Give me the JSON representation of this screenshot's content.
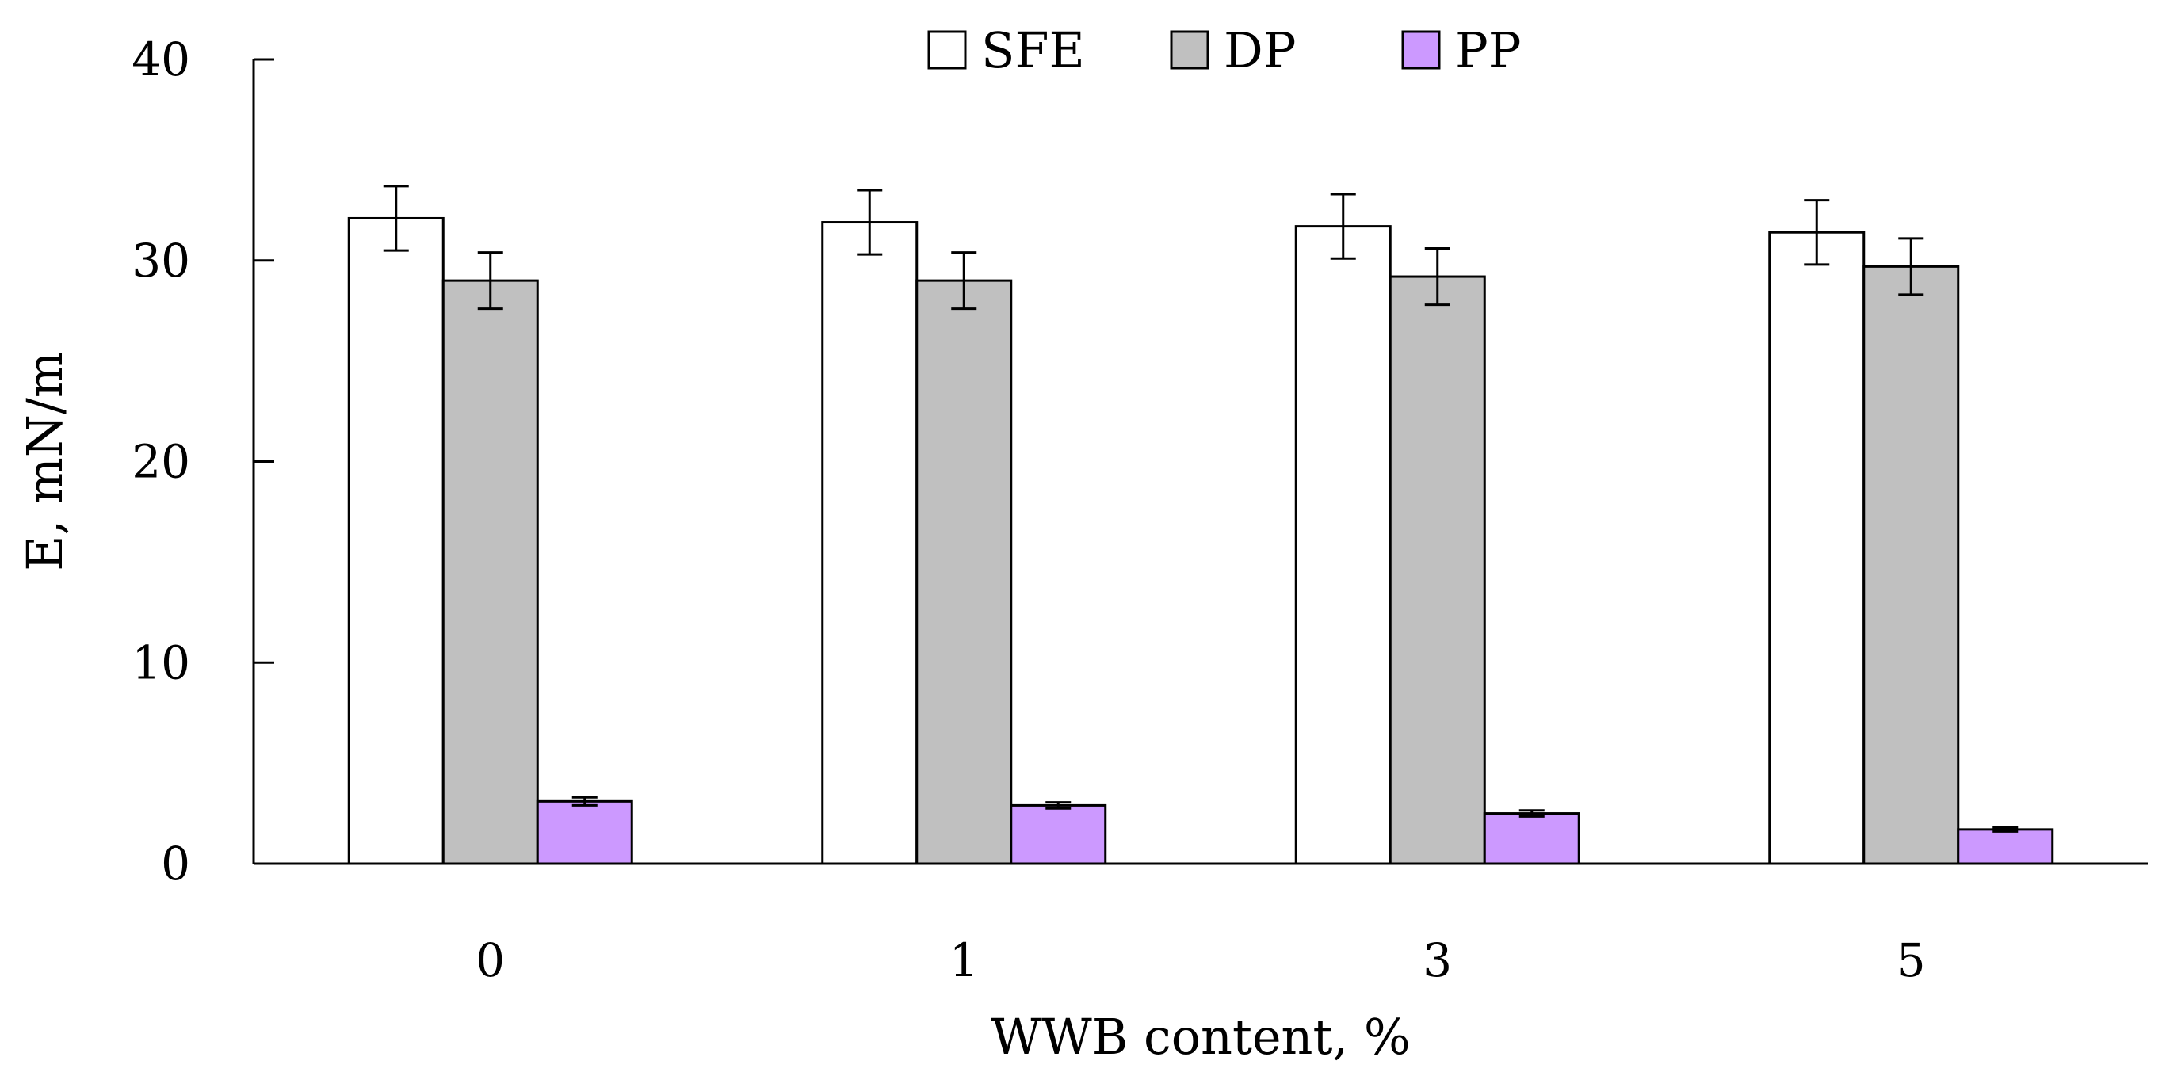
{
  "chart_data": {
    "type": "bar",
    "xlabel": "WWB content, %",
    "ylabel": "E, mN/m",
    "ylim": [
      0,
      40
    ],
    "yticks": [
      "0",
      "10",
      "20",
      "30",
      "40"
    ],
    "categories": [
      "0",
      "1",
      "3",
      "5"
    ],
    "series": [
      {
        "name": "SFE",
        "color": "#ffffff",
        "values": [
          32.1,
          31.9,
          31.7,
          31.4
        ],
        "errors": [
          1.6,
          1.6,
          1.6,
          1.6
        ]
      },
      {
        "name": "DP",
        "color": "#c0c0c0",
        "values": [
          29.0,
          29.0,
          29.2,
          29.7
        ],
        "errors": [
          1.4,
          1.4,
          1.4,
          1.4
        ]
      },
      {
        "name": "PP",
        "color": "#cc99ff",
        "values": [
          3.1,
          2.9,
          2.5,
          1.7
        ],
        "errors": [
          0.2,
          0.15,
          0.15,
          0.1
        ]
      }
    ],
    "legend_position": "top-center",
    "grid": false
  }
}
